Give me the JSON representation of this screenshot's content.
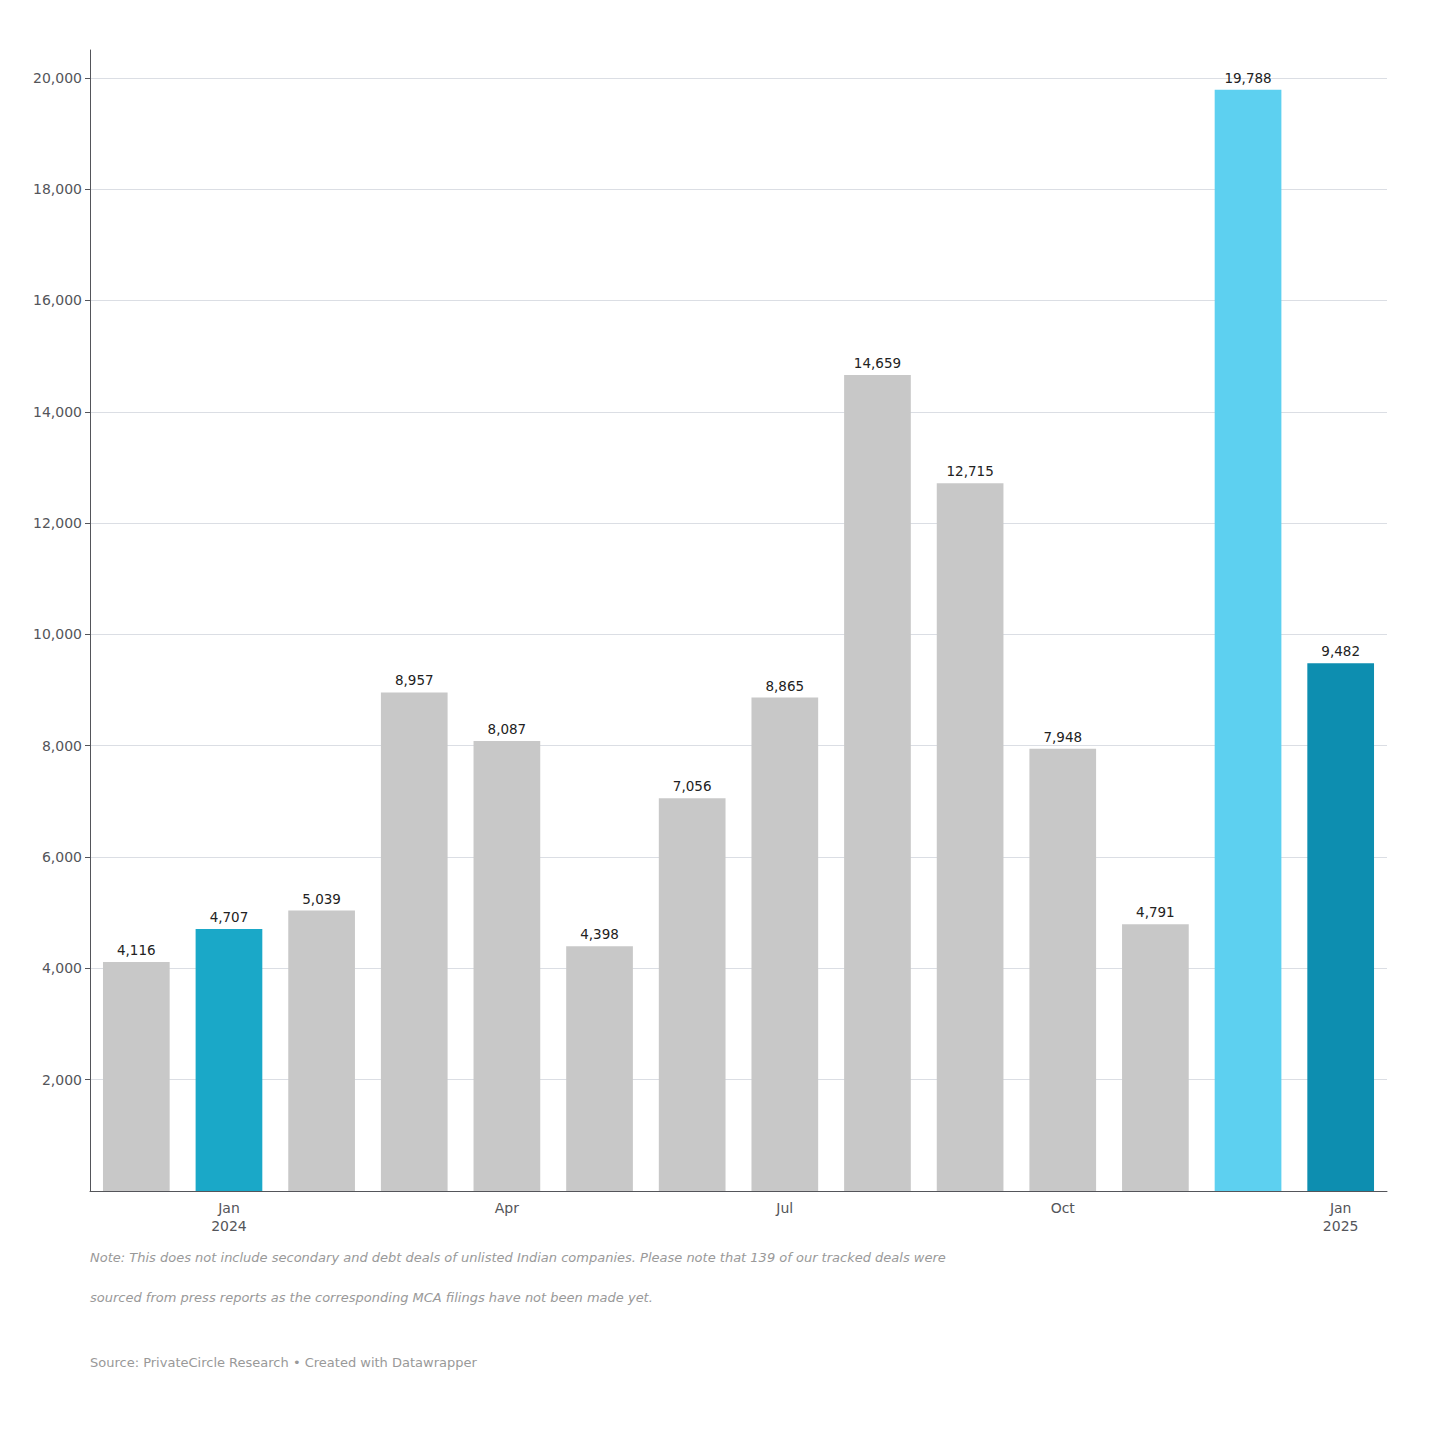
{
  "chart_data": {
    "type": "bar",
    "categories": [
      null,
      "Jan\n2024",
      null,
      null,
      "Apr",
      null,
      null,
      "Jul",
      null,
      null,
      "Oct",
      null,
      null,
      "Jan\n2025"
    ],
    "values": [
      4116,
      4707,
      5039,
      8957,
      8087,
      4398,
      7056,
      8865,
      14659,
      12715,
      7948,
      4791,
      19788,
      9482
    ],
    "value_labels": [
      "4,116",
      "4,707",
      "5,039",
      "8,957",
      "8,087",
      "4,398",
      "7,056",
      "8,865",
      "14,659",
      "12,715",
      "7,948",
      "4,791",
      "19,788",
      "9,482"
    ],
    "colors": [
      "#c8c8c8",
      "#1aa8c8",
      "#c8c8c8",
      "#c8c8c8",
      "#c8c8c8",
      "#c8c8c8",
      "#c8c8c8",
      "#c8c8c8",
      "#c8c8c8",
      "#c8c8c8",
      "#c8c8c8",
      "#c8c8c8",
      "#5dd0f0",
      "#0d8eb0"
    ],
    "ylim": [
      0,
      20500
    ],
    "yticks": [
      {
        "value": 2000,
        "label": "2,000"
      },
      {
        "value": 4000,
        "label": "4,000"
      },
      {
        "value": 6000,
        "label": "6,000"
      },
      {
        "value": 8000,
        "label": "8,000"
      },
      {
        "value": 10000,
        "label": "10,000"
      },
      {
        "value": 12000,
        "label": "12,000"
      },
      {
        "value": 14000,
        "label": "14,000"
      },
      {
        "value": 16000,
        "label": "16,000"
      },
      {
        "value": 18000,
        "label": "18,000"
      },
      {
        "value": 20000,
        "label": "20,000"
      }
    ],
    "grid": true,
    "data_labels": true,
    "annotations": [
      "Note: This does not include secondary and debt deals of unlisted Indian companies. Please note that 139 of our tracked deals were",
      "sourced from press reports as the corresponding MCA filings have not been made yet.",
      "Source: PrivateCircle Research • Created with Datawrapper"
    ]
  }
}
